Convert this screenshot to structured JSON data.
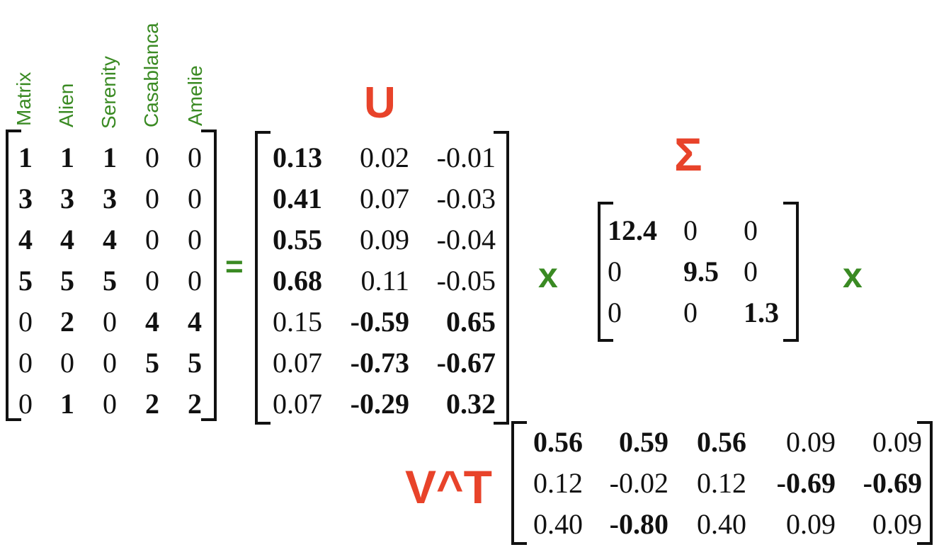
{
  "movies": [
    "Matrix",
    "Alien",
    "Serenity",
    "Casablanca",
    "Amelie"
  ],
  "labels": {
    "u": "U",
    "sigma": "Σ",
    "vt": "V^T",
    "equals": "=",
    "times": "x"
  },
  "colors": {
    "green": "#3a8a23",
    "red": "#e8432a",
    "ink": "#111111"
  },
  "A": [
    [
      "1",
      "1",
      "1",
      "0",
      "0"
    ],
    [
      "3",
      "3",
      "3",
      "0",
      "0"
    ],
    [
      "4",
      "4",
      "4",
      "0",
      "0"
    ],
    [
      "5",
      "5",
      "5",
      "0",
      "0"
    ],
    [
      "0",
      "2",
      "0",
      "4",
      "4"
    ],
    [
      "0",
      "0",
      "0",
      "5",
      "5"
    ],
    [
      "0",
      "1",
      "0",
      "2",
      "2"
    ]
  ],
  "A_bold": [
    [
      1,
      1,
      1,
      0,
      0
    ],
    [
      1,
      1,
      1,
      0,
      0
    ],
    [
      1,
      1,
      1,
      0,
      0
    ],
    [
      1,
      1,
      1,
      0,
      0
    ],
    [
      0,
      1,
      0,
      1,
      1
    ],
    [
      0,
      0,
      0,
      1,
      1
    ],
    [
      0,
      1,
      0,
      1,
      1
    ]
  ],
  "U": [
    [
      "0.13",
      "0.02",
      "-0.01"
    ],
    [
      "0.41",
      "0.07",
      "-0.03"
    ],
    [
      "0.55",
      "0.09",
      "-0.04"
    ],
    [
      "0.68",
      "0.11",
      "-0.05"
    ],
    [
      "0.15",
      "-0.59",
      "0.65"
    ],
    [
      "0.07",
      "-0.73",
      "-0.67"
    ],
    [
      "0.07",
      "-0.29",
      "0.32"
    ]
  ],
  "U_bold": [
    [
      1,
      0,
      0
    ],
    [
      1,
      0,
      0
    ],
    [
      1,
      0,
      0
    ],
    [
      1,
      0,
      0
    ],
    [
      0,
      1,
      1
    ],
    [
      0,
      1,
      1
    ],
    [
      0,
      1,
      1
    ]
  ],
  "Sigma": [
    [
      "12.4",
      "0",
      "0"
    ],
    [
      "0",
      "9.5",
      "0"
    ],
    [
      "0",
      "0",
      "1.3"
    ]
  ],
  "Sigma_bold": [
    [
      1,
      0,
      0
    ],
    [
      0,
      1,
      0
    ],
    [
      0,
      0,
      1
    ]
  ],
  "VT": [
    [
      "0.56",
      "0.59",
      "0.56",
      "0.09",
      "0.09"
    ],
    [
      "0.12",
      "-0.02",
      "0.12",
      "-0.69",
      "-0.69"
    ],
    [
      "0.40",
      "-0.80",
      "0.40",
      "0.09",
      "0.09"
    ]
  ],
  "VT_bold": [
    [
      1,
      1,
      1,
      0,
      0
    ],
    [
      0,
      0,
      0,
      1,
      1
    ],
    [
      0,
      1,
      0,
      0,
      0
    ]
  ]
}
